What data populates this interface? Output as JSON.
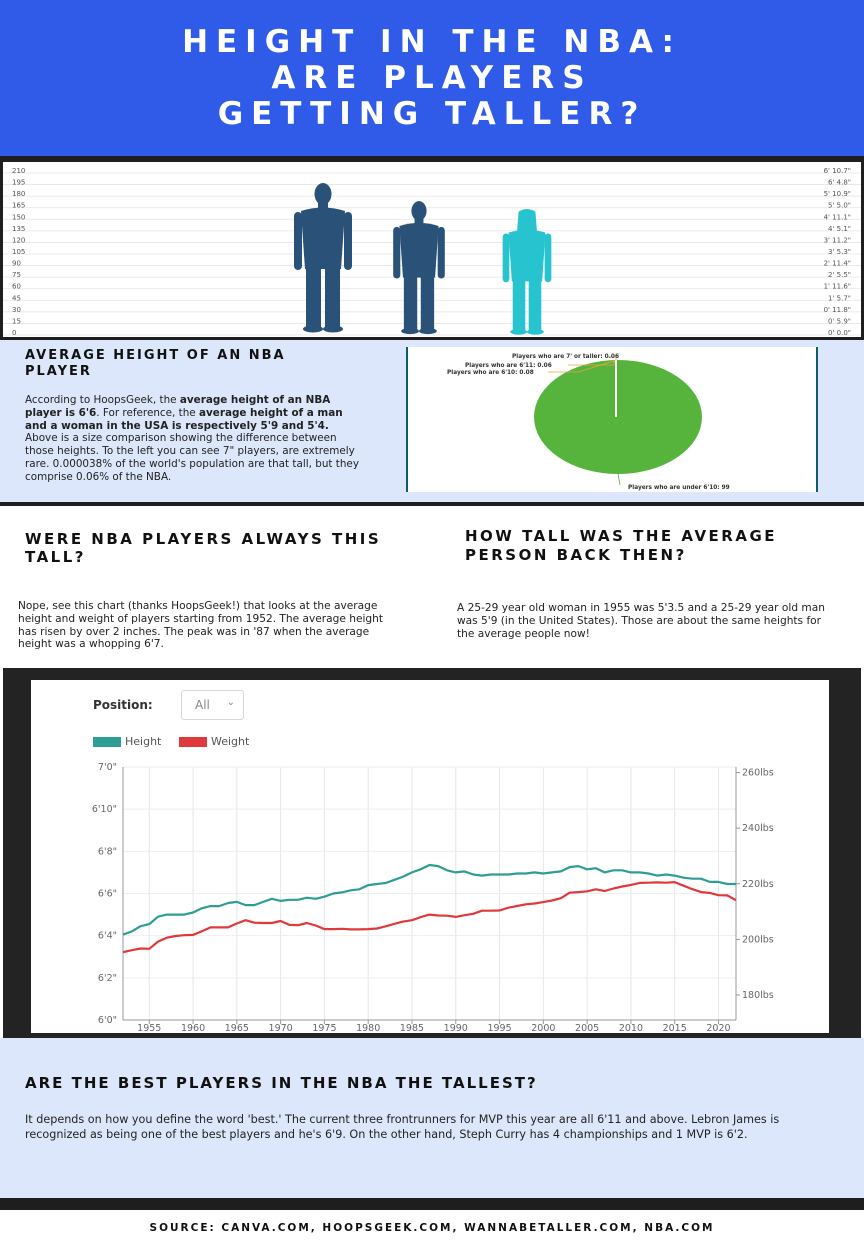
{
  "header": {
    "title_line1": "HEIGHT IN THE NBA:",
    "title_line2": "ARE PLAYERS",
    "title_line3": "GETTING TALLER?"
  },
  "height_scale": {
    "left_ticks": [
      "210",
      "195",
      "180",
      "165",
      "150",
      "135",
      "120",
      "105",
      "90",
      "75",
      "60",
      "45",
      "30",
      "15",
      "0"
    ],
    "right_ticks": [
      "6' 10.7\"",
      "6' 4.8\"",
      "5' 10.9\"",
      "5' 5.0\"",
      "4' 11.1\"",
      "4' 5.1\"",
      "3' 11.2\"",
      "3' 5.3\"",
      "2' 11.4\"",
      "2' 5.5\"",
      "1' 11.6\"",
      "1' 5.7\"",
      "0' 11.8\"",
      "0' 5.9\"",
      "0' 0.0\""
    ],
    "figures": [
      {
        "icon": "nba-player-silhouette",
        "color": "#2a5279"
      },
      {
        "icon": "man-silhouette",
        "color": "#2a5279"
      },
      {
        "icon": "woman-silhouette",
        "color": "#27c4cf"
      }
    ]
  },
  "avg_height": {
    "heading": "AVERAGE HEIGHT OF AN NBA PLAYER",
    "p1": "According to HoopsGeek, the ",
    "b1": "average height of an NBA player is 6'6",
    "p2": ". For reference, the ",
    "b2": "average height of a man and a woman in the USA is respectively 5'9 and 5'4.",
    "p3": " Above is a size comparison showing the difference between those heights. To the left you can see 7\" players, are extremely rare. 0.000038% of the world's population are that tall, but they comprise 0.06% of the NBA."
  },
  "pie": {
    "labels": [
      "Players who are 7' or taller: 0.06",
      "Players who are 6'11: 0.06",
      "Players who are 6'10: 0.08",
      "Players who are under 6'10: 99"
    ],
    "colors": {
      "main": "#56b43c",
      "slice_line": "#e8a53a"
    }
  },
  "always_tall": {
    "heading": "WERE NBA PLAYERS ALWAYS THIS TALL?",
    "text": "Nope, see this chart (thanks HoopsGeek!) that looks at the average height and weight of players starting from 1952. The average height has risen by over 2 inches. The peak was in '87 when the average height was a whopping 6'7."
  },
  "back_then": {
    "heading": "HOW TALL WAS THE AVERAGE PERSON BACK THEN?",
    "text": "A 25-29 year old woman in 1955 was 5'3.5 and a 25-29 year old man was 5'9 (in the United States). Those are about the same heights for the average people now!"
  },
  "chart_controls": {
    "position_label": "Position:",
    "position_value": "All",
    "legend_height": "Height",
    "legend_weight": "Weight"
  },
  "chart_data": {
    "type": "line",
    "x_ticks": [
      1955,
      1960,
      1965,
      1970,
      1975,
      1980,
      1985,
      1990,
      1995,
      2000,
      2005,
      2010,
      2015,
      2020
    ],
    "xlim": [
      1952,
      2022
    ],
    "y_left_ticks": [
      "7'0\"",
      "6'10\"",
      "6'8\"",
      "6'6\"",
      "6'4\"",
      "6'2\"",
      "6'0\""
    ],
    "ylim_left_inches": [
      72,
      84
    ],
    "y_right_ticks": [
      "260lbs",
      "240lbs",
      "220lbs",
      "200lbs",
      "180lbs"
    ],
    "ylim_right_lbs": [
      171,
      262
    ],
    "grid": true,
    "legend": "top-left",
    "colors": {
      "height": "#2e9d94",
      "weight": "#e0393b"
    },
    "series": [
      {
        "name": "Height",
        "axis": "left",
        "x": [
          1952,
          1953,
          1954,
          1955,
          1956,
          1957,
          1958,
          1959,
          1960,
          1961,
          1962,
          1963,
          1964,
          1965,
          1966,
          1967,
          1968,
          1969,
          1970,
          1971,
          1972,
          1973,
          1974,
          1975,
          1976,
          1977,
          1978,
          1979,
          1980,
          1981,
          1982,
          1983,
          1984,
          1985,
          1986,
          1987,
          1988,
          1989,
          1990,
          1991,
          1992,
          1993,
          1994,
          1995,
          1996,
          1997,
          1998,
          1999,
          2000,
          2001,
          2002,
          2003,
          2004,
          2005,
          2006,
          2007,
          2008,
          2009,
          2010,
          2011,
          2012,
          2013,
          2014,
          2015,
          2016,
          2017,
          2018,
          2019,
          2020,
          2021,
          2022
        ],
        "values": [
          76.05,
          76.2,
          76.45,
          76.55,
          76.9,
          77.0,
          77.0,
          77.0,
          77.1,
          77.3,
          77.4,
          77.4,
          77.55,
          77.6,
          77.45,
          77.45,
          77.6,
          77.75,
          77.65,
          77.7,
          77.7,
          77.8,
          77.75,
          77.85,
          78.0,
          78.05,
          78.15,
          78.2,
          78.4,
          78.45,
          78.5,
          78.65,
          78.8,
          79.0,
          79.15,
          79.35,
          79.3,
          79.1,
          79.0,
          79.05,
          78.9,
          78.85,
          78.9,
          78.9,
          78.9,
          78.95,
          78.95,
          79.0,
          78.95,
          79.0,
          79.05,
          79.25,
          79.3,
          79.15,
          79.2,
          79.0,
          79.1,
          79.1,
          79.0,
          79.0,
          78.95,
          78.85,
          78.9,
          78.85,
          78.75,
          78.7,
          78.7,
          78.55,
          78.55,
          78.45,
          78.45
        ]
      },
      {
        "name": "Weight",
        "axis": "right",
        "x": [
          1952,
          1953,
          1954,
          1955,
          1956,
          1957,
          1958,
          1959,
          1960,
          1961,
          1962,
          1963,
          1964,
          1965,
          1966,
          1967,
          1968,
          1969,
          1970,
          1971,
          1972,
          1973,
          1974,
          1975,
          1976,
          1977,
          1978,
          1979,
          1980,
          1981,
          1982,
          1983,
          1984,
          1985,
          1986,
          1987,
          1988,
          1989,
          1990,
          1991,
          1992,
          1993,
          1994,
          1995,
          1996,
          1997,
          1998,
          1999,
          2000,
          2001,
          2002,
          2003,
          2004,
          2005,
          2006,
          2007,
          2008,
          2009,
          2010,
          2011,
          2012,
          2013,
          2014,
          2015,
          2016,
          2017,
          2018,
          2019,
          2020,
          2021,
          2022
        ],
        "values": [
          195.4,
          196.1,
          196.7,
          196.6,
          199.2,
          200.6,
          201.2,
          201.5,
          201.6,
          202.9,
          204.3,
          204.3,
          204.3,
          205.7,
          206.9,
          206.0,
          205.9,
          205.9,
          206.6,
          205.2,
          205.1,
          205.9,
          205.0,
          203.7,
          203.7,
          203.8,
          203.6,
          203.6,
          203.7,
          203.9,
          204.7,
          205.6,
          206.4,
          206.9,
          208.0,
          208.9,
          208.6,
          208.5,
          208.1,
          208.7,
          209.2,
          210.3,
          210.3,
          210.4,
          211.4,
          212.0,
          212.6,
          212.9,
          213.4,
          214.0,
          214.8,
          216.8,
          217.0,
          217.3,
          218.0,
          217.4,
          218.3,
          219.0,
          219.6,
          220.3,
          220.4,
          220.5,
          220.4,
          220.6,
          219.3,
          218.1,
          217.0,
          216.7,
          215.9,
          215.8,
          214.1
        ]
      }
    ]
  },
  "best_players": {
    "heading": "ARE THE BEST PLAYERS IN THE NBA THE TALLEST?",
    "text": "It depends on how you define the word 'best.' The current three frontrunners for MVP this year are all 6'11 and above. Lebron James is recognized as being one of the best players and he's 6'9. On the other hand, Steph Curry has 4 championships and 1 MVP is 6'2."
  },
  "footer": {
    "source": "SOURCE: CANVA.COM, HOOPSGEEK.COM, WANNABETALLER.COM, NBA.COM"
  }
}
